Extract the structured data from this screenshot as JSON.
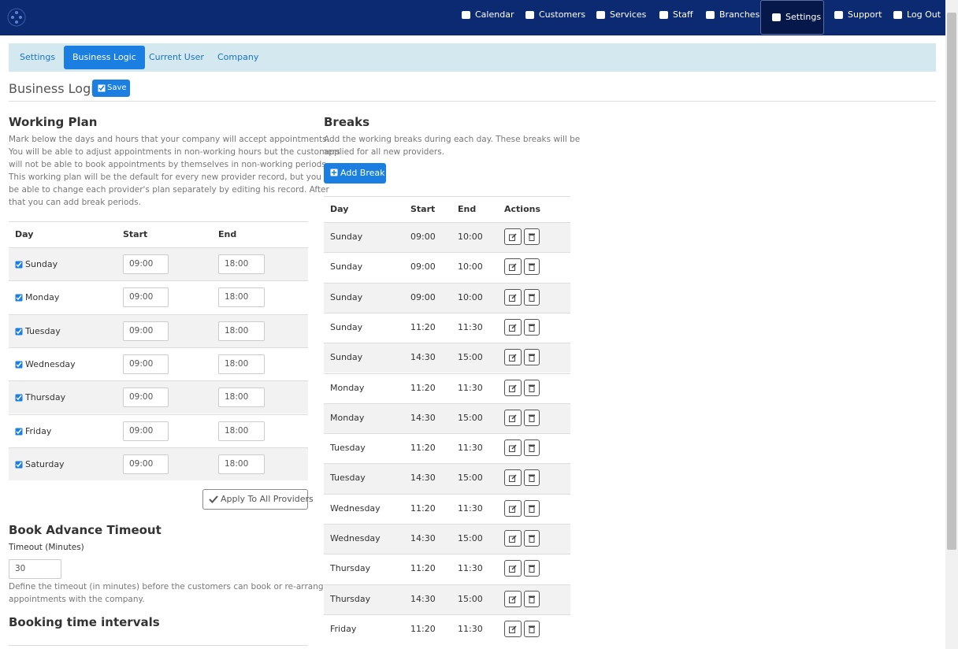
{
  "nav": {
    "items": [
      "Calendar",
      "Customers",
      "Services",
      "Staff",
      "Branches",
      "Settings",
      "Support",
      "Log Out"
    ]
  },
  "tabs": [
    "Settings",
    "Business Logic",
    "Current User",
    "Company"
  ],
  "header": {
    "title": "Business Logic",
    "save": "Save"
  },
  "working_plan": {
    "title": "Working Plan",
    "description": [
      "Mark below the days and hours that your company will accept appointments.",
      "You will be able to adjust appointments in non-working hours but the customers",
      "will not be able to book appointments by themselves in non-working periods.",
      "This working plan will be the default for every new provider record, but you will",
      "be able to change each provider's plan separately by editing his record. After",
      "that you can add break periods."
    ],
    "columns": [
      "Day",
      "Start",
      "End"
    ],
    "rows": [
      [
        "Sunday",
        "09:00",
        "18:00"
      ],
      [
        "Monday",
        "09:00",
        "18:00"
      ],
      [
        "Tuesday",
        "09:00",
        "18:00"
      ],
      [
        "Wednesday",
        "09:00",
        "18:00"
      ],
      [
        "Thursday",
        "09:00",
        "18:00"
      ],
      [
        "Friday",
        "09:00",
        "18:00"
      ],
      [
        "Saturday",
        "09:00",
        "18:00"
      ]
    ],
    "apply_button": "Apply To All Providers"
  },
  "book_advance": {
    "title": "Book Advance Timeout",
    "label": "Timeout (Minutes)",
    "value": "30",
    "help": [
      "Define the timeout (in minutes) before the customers can book or re-arrange",
      "appointments with the company."
    ]
  },
  "booking_intervals": {
    "title": "Booking time intervals"
  },
  "breaks": {
    "title": "Breaks",
    "description": [
      "Add the working breaks during each day. These breaks will be",
      "applied for all new providers."
    ],
    "add_button": "Add Break",
    "columns": [
      "Day",
      "Start",
      "End",
      "Actions"
    ],
    "rows": [
      [
        "Sunday",
        "09:00",
        "10:00"
      ],
      [
        "Sunday",
        "09:00",
        "10:00"
      ],
      [
        "Sunday",
        "09:00",
        "10:00"
      ],
      [
        "Sunday",
        "11:20",
        "11:30"
      ],
      [
        "Sunday",
        "14:30",
        "15:00"
      ],
      [
        "Monday",
        "11:20",
        "11:30"
      ],
      [
        "Monday",
        "14:30",
        "15:00"
      ],
      [
        "Tuesday",
        "11:20",
        "11:30"
      ],
      [
        "Tuesday",
        "14:30",
        "15:00"
      ],
      [
        "Wednesday",
        "11:20",
        "11:30"
      ],
      [
        "Wednesday",
        "14:30",
        "15:00"
      ],
      [
        "Thursday",
        "11:20",
        "11:30"
      ],
      [
        "Thursday",
        "14:30",
        "15:00"
      ],
      [
        "Friday",
        "11:20",
        "11:30"
      ]
    ]
  }
}
